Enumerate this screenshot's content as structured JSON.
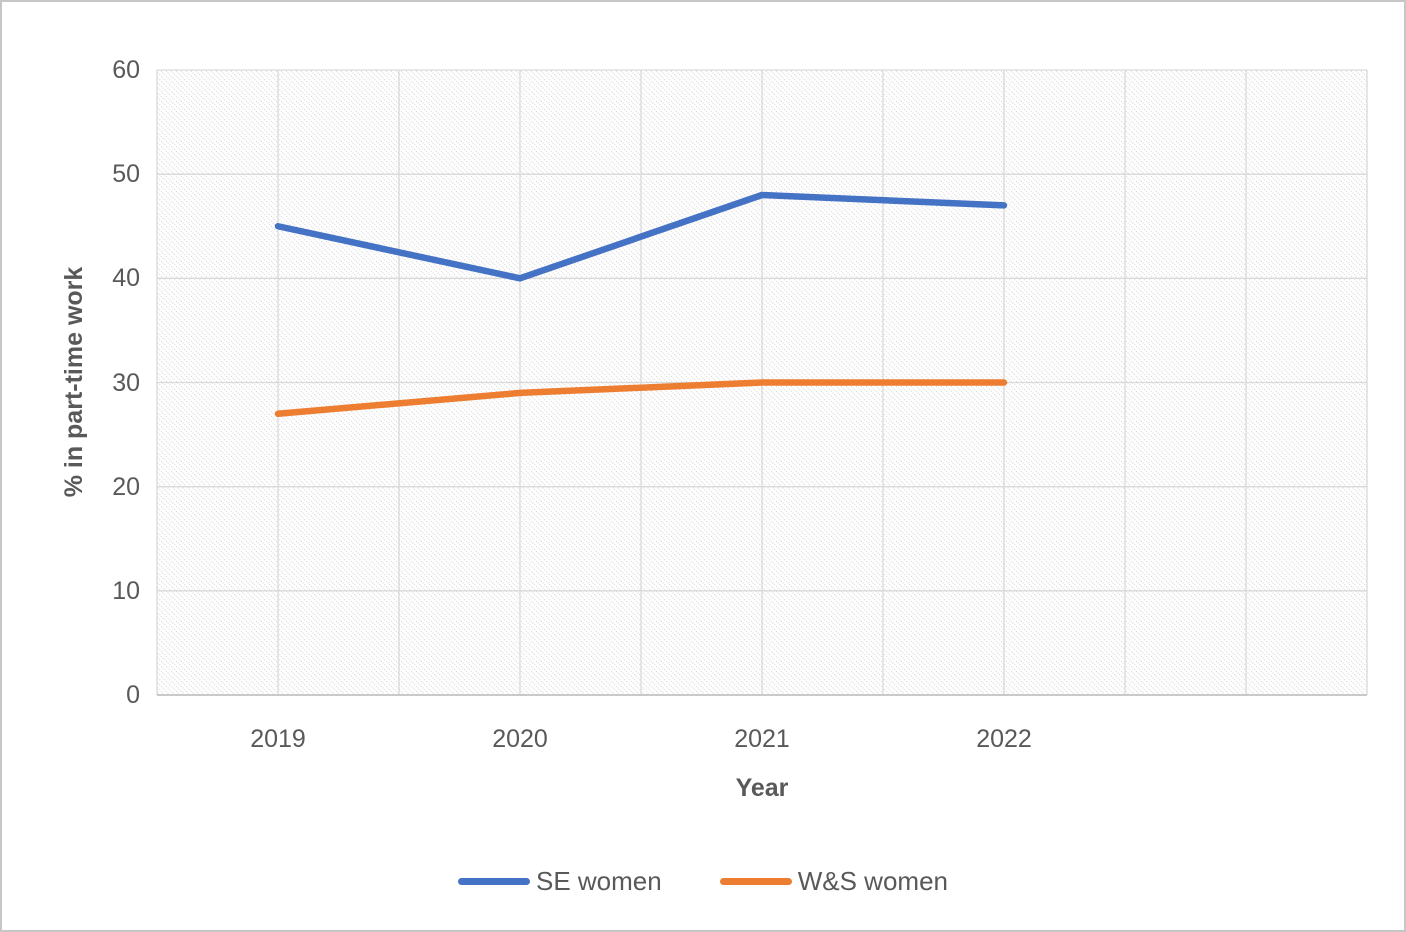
{
  "chart_data": {
    "type": "line",
    "title": "",
    "xlabel": "Year",
    "ylabel": "% in part-time work",
    "categories": [
      "2019",
      "2020",
      "2021",
      "2022"
    ],
    "series": [
      {
        "name": "SE women",
        "color": "#4472C4",
        "values": [
          45,
          40,
          48,
          47
        ]
      },
      {
        "name": "W&S women",
        "color": "#ED7D31",
        "values": [
          27,
          29,
          30,
          30
        ]
      }
    ],
    "y_ticks": [
      0,
      10,
      20,
      30,
      40,
      50,
      60
    ],
    "ylim": [
      0,
      60
    ],
    "grid": true,
    "legend_position": "bottom",
    "plot_background": "diagonal-hatch-pattern",
    "colors": {
      "grid": "#d9d9d9",
      "axis_text": "#595959",
      "hatch": "#d6d6d6",
      "frame_border": "#c6c6c6"
    }
  }
}
